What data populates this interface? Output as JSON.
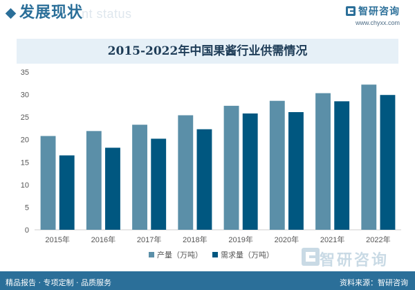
{
  "header": {
    "title": "发展现状",
    "subtitle": "nt status",
    "brand_name": "智研咨询",
    "brand_url": "www.chyxx.com"
  },
  "watermark": {
    "text": "智研咨询"
  },
  "footer": {
    "left": "精品报告 · 专项定制 · 品质服务",
    "right": "资料来源：智研咨询"
  },
  "colors": {
    "production": "#5b8fa8",
    "demand": "#005780",
    "brand": "#2b6f99",
    "title_band": "#e6f0f7"
  },
  "chart_data": {
    "type": "bar",
    "title": "2015-2022年中国果酱行业供需情况",
    "categories": [
      "2015年",
      "2016年",
      "2017年",
      "2018年",
      "2019年",
      "2020年",
      "2021年",
      "2022年"
    ],
    "series": [
      {
        "name": "产量（万吨）",
        "values": [
          20.8,
          21.9,
          23.3,
          25.4,
          27.5,
          28.6,
          30.3,
          32.2
        ]
      },
      {
        "name": "需求量（万吨）",
        "values": [
          16.5,
          18.2,
          20.2,
          22.3,
          25.8,
          26.1,
          28.5,
          29.9
        ]
      }
    ],
    "ylim": [
      0,
      35
    ],
    "yticks": [
      0,
      5,
      10,
      15,
      20,
      25,
      30,
      35
    ],
    "grid": false,
    "legend": "bottom-center"
  }
}
